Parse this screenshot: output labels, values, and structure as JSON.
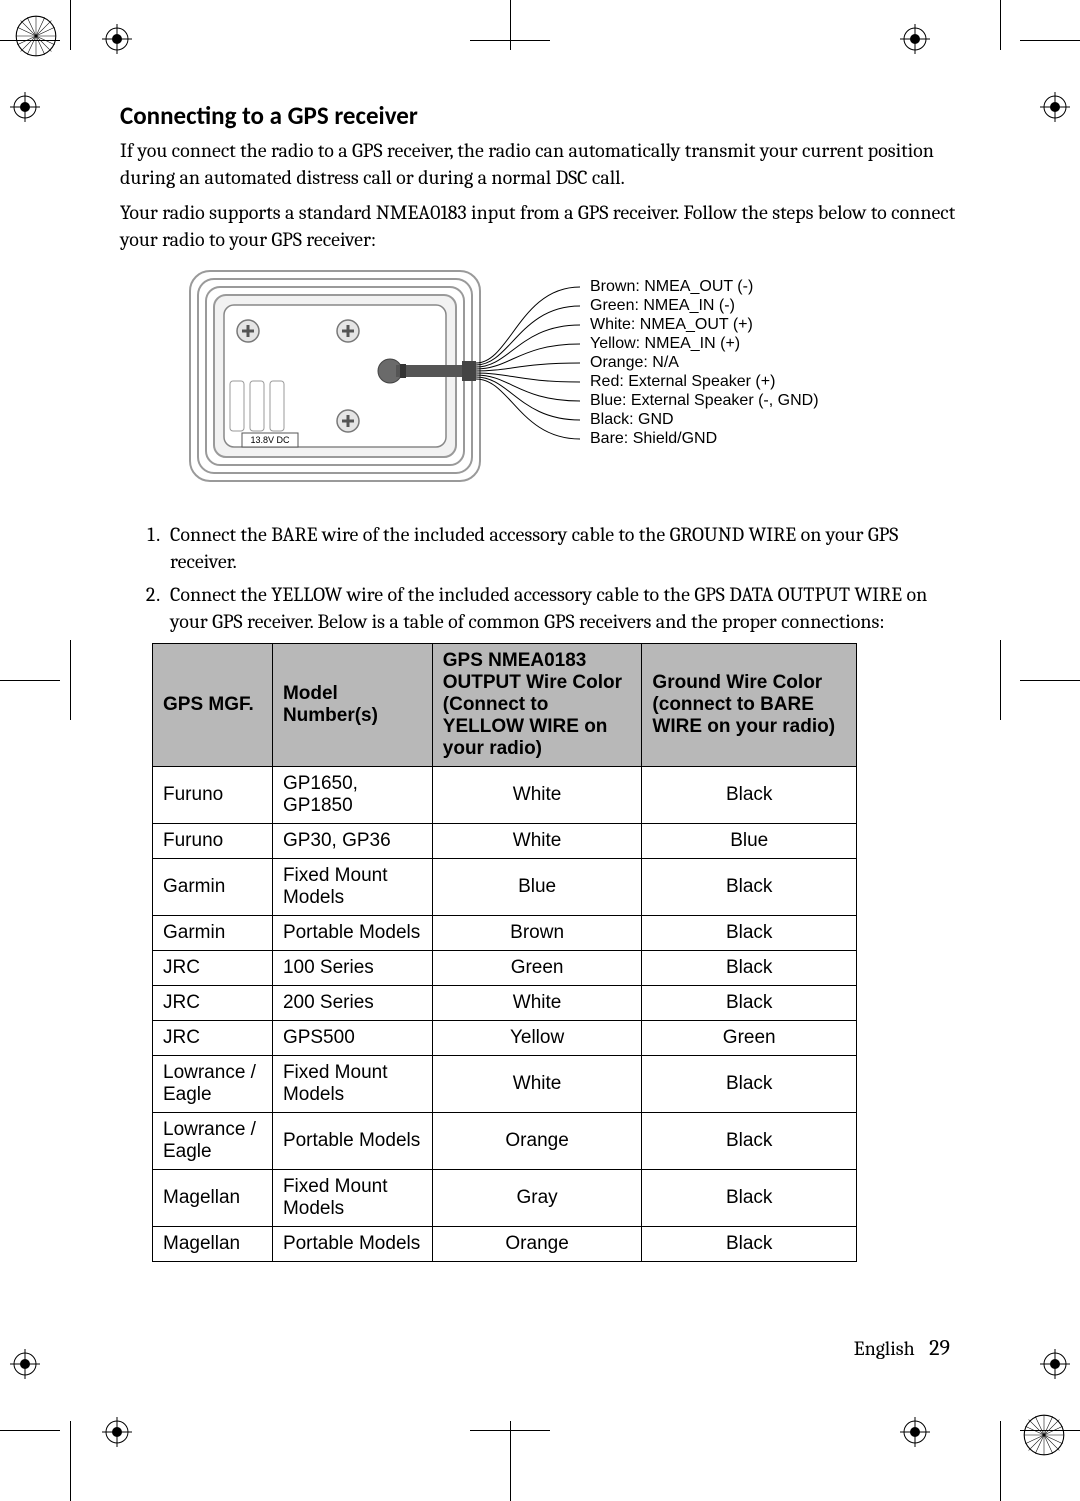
{
  "title": "Connecting to a GPS receiver",
  "intro1": "If you connect the radio to a GPS receiver, the radio can automatically transmit your current position during an automated distress call or during a normal DSC call.",
  "intro2": "Your radio supports a standard NMEA0183 input from a GPS receiver. Follow the steps below to connect your radio to your GPS receiver:",
  "dc_label": "13.8V DC",
  "wires": [
    "Brown: NMEA_OUT (-)",
    "Green: NMEA_IN (-)",
    "White: NMEA_OUT (+)",
    "Yellow: NMEA_IN (+)",
    "Orange: N/A",
    "Red:  External Speaker (+)",
    "Blue: External Speaker (-, GND)",
    "Black: GND",
    "Bare: Shield/GND"
  ],
  "step1": "Connect the BARE wire of the included accessory cable to the GROUND WIRE on your GPS receiver.",
  "step2": "Connect the YELLOW wire of the included accessory cable to the GPS DATA OUTPUT WIRE on your GPS receiver. Below is a table of common GPS receivers and the proper connections:",
  "table": {
    "columns": [
      "GPS MGF.",
      "Model Number(s)",
      "GPS NMEA0183 OUTPUT Wire Color (Connect to YELLOW WIRE on your radio)",
      "Ground Wire Color (connect to BARE WIRE on your radio)"
    ],
    "rows": [
      [
        "Furuno",
        "GP1650, GP1850",
        "White",
        "Black"
      ],
      [
        "Furuno",
        "GP30, GP36",
        "White",
        "Blue"
      ],
      [
        "Garmin",
        "Fixed Mount Models",
        "Blue",
        "Black"
      ],
      [
        "Garmin",
        "Portable Models",
        "Brown",
        "Black"
      ],
      [
        "JRC",
        "100 Series",
        "Green",
        "Black"
      ],
      [
        "JRC",
        "200 Series",
        "White",
        "Black"
      ],
      [
        "JRC",
        "GPS500",
        "Yellow",
        "Green"
      ],
      [
        "Lowrance / Eagle",
        "Fixed Mount Models",
        "White",
        "Black"
      ],
      [
        "Lowrance / Eagle",
        "Portable Models",
        "Orange",
        "Black"
      ],
      [
        "Magellan",
        "Fixed Mount Models",
        "Gray",
        "Black"
      ],
      [
        "Magellan",
        "Portable Models",
        "Orange",
        "Black"
      ]
    ],
    "col_widths": [
      "120px",
      "160px",
      "210px",
      "215px"
    ],
    "header_bg": "#b8b8b8",
    "border_color": "#000000",
    "font_family": "Arial",
    "font_size": 19
  },
  "footer": {
    "lang": "English",
    "page": "29"
  }
}
